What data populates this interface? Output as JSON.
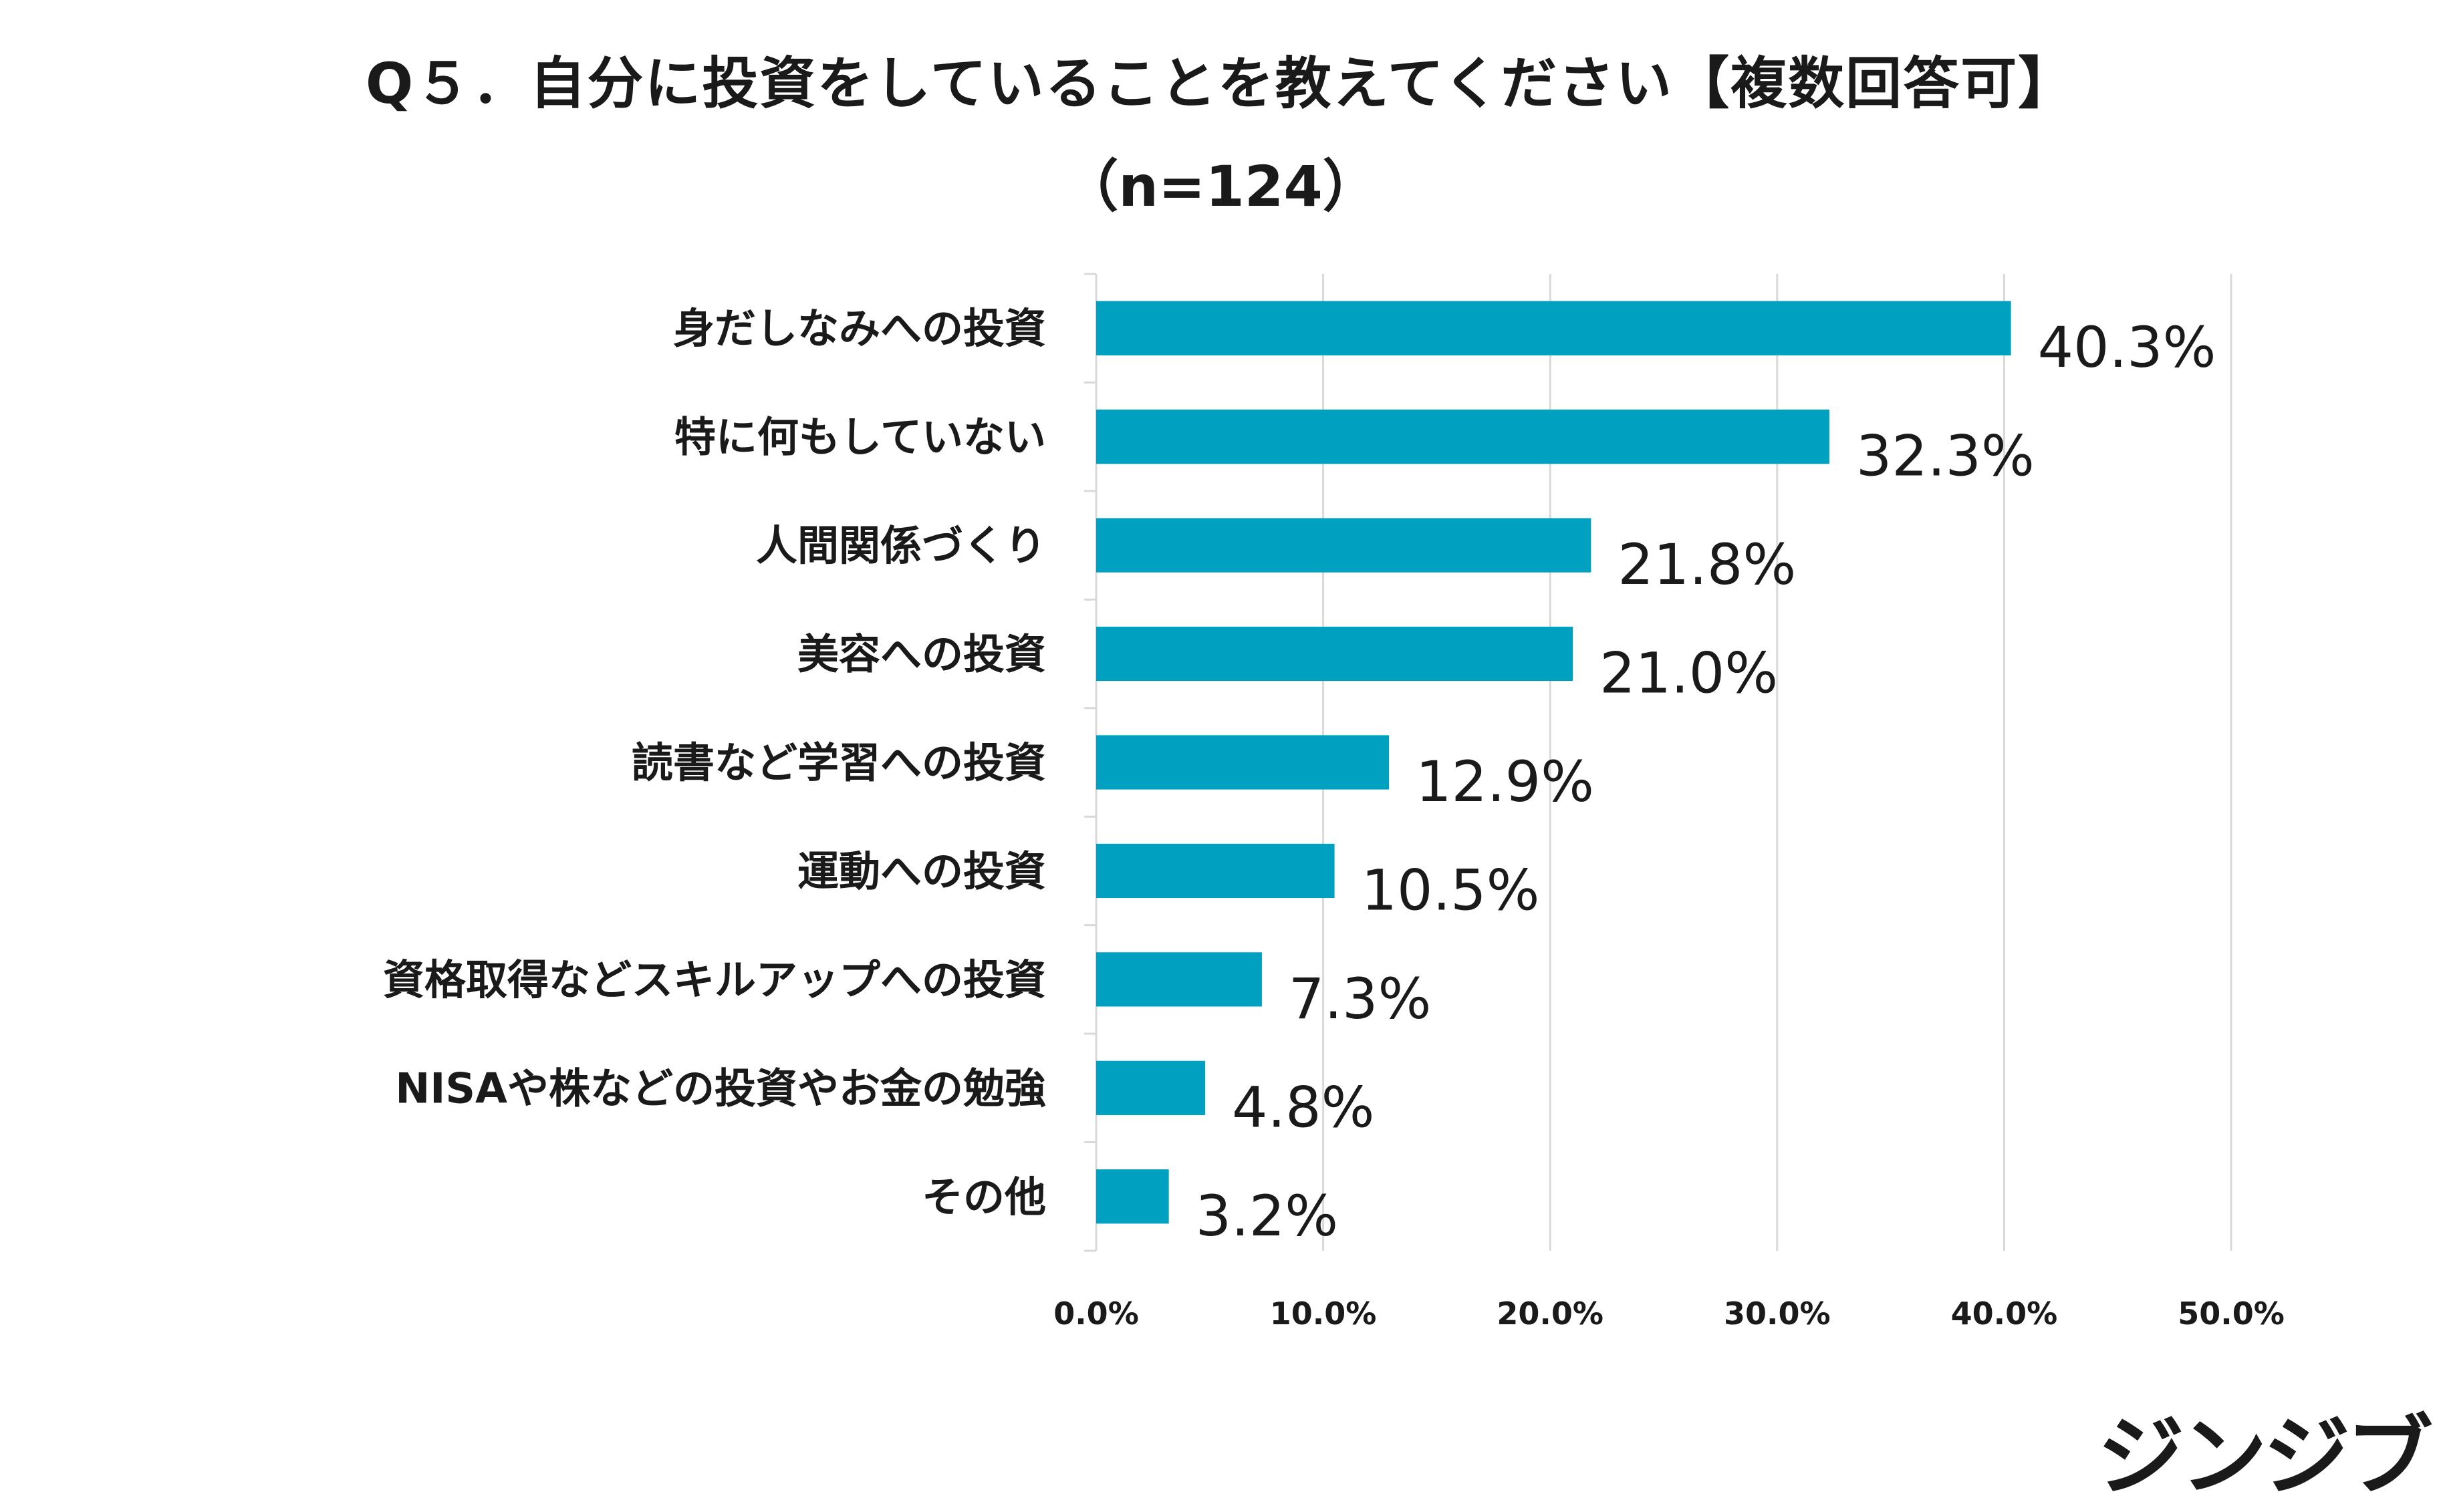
{
  "chart_data": {
    "type": "bar",
    "orientation": "horizontal",
    "title": "Q５．自分に投資をしていることを教えてください【複数回答可】",
    "subtitle": "（n=124）",
    "categories": [
      "身だしなみへの投資",
      "特に何もしていない",
      "人間関係づくり",
      "美容への投資",
      "読書など学習への投資",
      "運動への投資",
      "資格取得などスキルアップへの投資",
      "NISAや株などの投資やお金の勉強",
      "その他"
    ],
    "values": [
      40.3,
      32.3,
      21.8,
      21.0,
      12.9,
      10.5,
      7.3,
      4.8,
      3.2
    ],
    "value_labels": [
      "40.3%",
      "32.3%",
      "21.8%",
      "21.0%",
      "12.9%",
      "10.5%",
      "7.3%",
      "4.8%",
      "3.2%"
    ],
    "xlim": [
      0,
      50
    ],
    "ticks": [
      0,
      10,
      20,
      30,
      40,
      50
    ],
    "tick_labels": [
      "0.0%",
      "10.0%",
      "20.0%",
      "30.0%",
      "40.0%",
      "50.0%"
    ],
    "grid": true,
    "legend": "none",
    "bar_color": "#00a0c0",
    "grid_color": "#d9d9d9"
  },
  "brand": {
    "logo_text": "ジンジブ"
  }
}
